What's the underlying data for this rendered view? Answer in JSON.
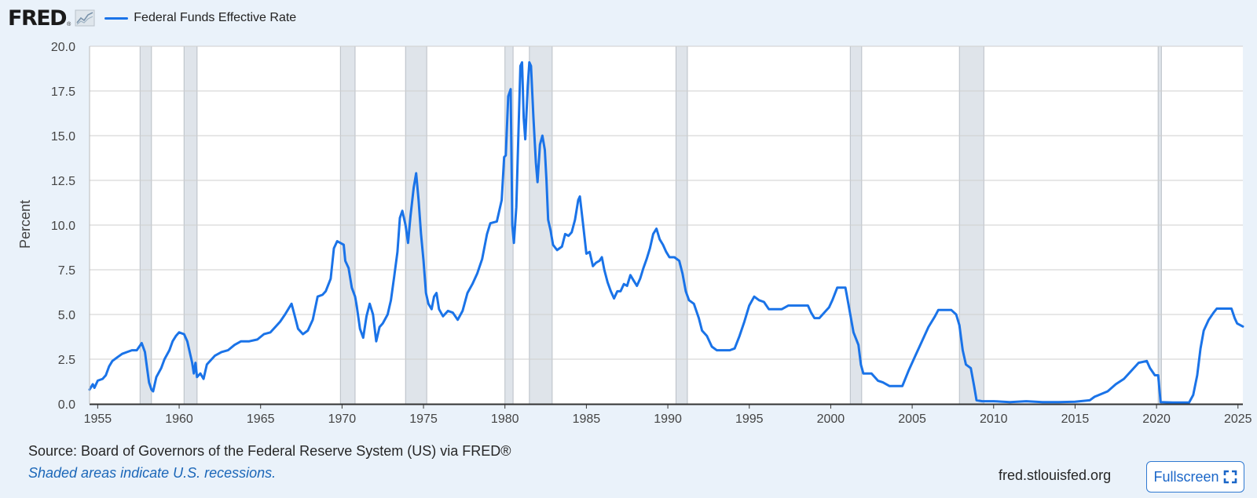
{
  "header": {
    "logo_text": "FRED",
    "logo_mark": "®",
    "logo_icon": "line-chart-icon",
    "legend_label": "Federal Funds Effective Rate"
  },
  "footer": {
    "source": "Source: Board of Governors of the Federal Reserve System (US) via FRED®",
    "note": "Shaded areas indicate U.S. recessions.",
    "url": "fred.stlouisfed.org",
    "fullscreen_label": "Fullscreen",
    "fullscreen_icon": "expand-icon"
  },
  "colors": {
    "series": "#1a73e8",
    "recession_band": "#dfe4ea",
    "recession_border": "#b9bfc6",
    "grid": "#cfcfcf",
    "plot_background": "#ffffff",
    "page_background": "#eaf2fa"
  },
  "chart_data": {
    "type": "line",
    "title": "",
    "xlabel": "",
    "ylabel": "Percent",
    "xlim": [
      1954.5,
      2025.3
    ],
    "ylim": [
      0,
      20
    ],
    "yticks": [
      0,
      2.5,
      5,
      7.5,
      10,
      12.5,
      15,
      17.5,
      20
    ],
    "ytick_labels": [
      "0.0",
      "2.5",
      "5.0",
      "7.5",
      "10.0",
      "12.5",
      "15.0",
      "17.5",
      "20.0"
    ],
    "xticks": [
      1955,
      1960,
      1965,
      1970,
      1975,
      1980,
      1985,
      1990,
      1995,
      2000,
      2005,
      2010,
      2015,
      2020,
      2025
    ],
    "xtick_labels": [
      "1955",
      "1960",
      "1965",
      "1970",
      "1975",
      "1980",
      "1985",
      "1990",
      "1995",
      "2000",
      "2005",
      "2010",
      "2015",
      "2020",
      "2025"
    ],
    "grid": true,
    "legend_position": "top-left",
    "recessions": [
      [
        1957.6,
        1958.3
      ],
      [
        1960.3,
        1961.1
      ],
      [
        1969.9,
        1970.8
      ],
      [
        1973.9,
        1975.2
      ],
      [
        1980.0,
        1980.5
      ],
      [
        1981.5,
        1982.9
      ],
      [
        1990.5,
        1991.2
      ],
      [
        2001.2,
        2001.9
      ],
      [
        2007.9,
        2009.4
      ],
      [
        2020.1,
        2020.3
      ]
    ],
    "series": [
      {
        "name": "Federal Funds Effective Rate",
        "points": [
          [
            1954.5,
            0.8
          ],
          [
            1954.7,
            1.1
          ],
          [
            1954.8,
            0.9
          ],
          [
            1955.0,
            1.3
          ],
          [
            1955.3,
            1.4
          ],
          [
            1955.5,
            1.6
          ],
          [
            1955.7,
            2.1
          ],
          [
            1955.9,
            2.4
          ],
          [
            1956.2,
            2.6
          ],
          [
            1956.5,
            2.8
          ],
          [
            1956.8,
            2.9
          ],
          [
            1957.1,
            3.0
          ],
          [
            1957.4,
            3.0
          ],
          [
            1957.7,
            3.4
          ],
          [
            1957.9,
            2.9
          ],
          [
            1958.0,
            2.2
          ],
          [
            1958.15,
            1.2
          ],
          [
            1958.3,
            0.8
          ],
          [
            1958.4,
            0.7
          ],
          [
            1958.6,
            1.5
          ],
          [
            1958.9,
            2.0
          ],
          [
            1959.1,
            2.5
          ],
          [
            1959.4,
            3.0
          ],
          [
            1959.6,
            3.5
          ],
          [
            1959.8,
            3.8
          ],
          [
            1960.0,
            4.0
          ],
          [
            1960.3,
            3.9
          ],
          [
            1960.5,
            3.5
          ],
          [
            1960.65,
            2.9
          ],
          [
            1960.8,
            2.3
          ],
          [
            1960.9,
            1.7
          ],
          [
            1961.0,
            2.3
          ],
          [
            1961.1,
            1.5
          ],
          [
            1961.3,
            1.7
          ],
          [
            1961.5,
            1.4
          ],
          [
            1961.7,
            2.2
          ],
          [
            1961.9,
            2.4
          ],
          [
            1962.2,
            2.7
          ],
          [
            1962.6,
            2.9
          ],
          [
            1963.0,
            3.0
          ],
          [
            1963.4,
            3.3
          ],
          [
            1963.8,
            3.5
          ],
          [
            1964.3,
            3.5
          ],
          [
            1964.8,
            3.6
          ],
          [
            1965.2,
            3.9
          ],
          [
            1965.6,
            4.0
          ],
          [
            1965.9,
            4.3
          ],
          [
            1966.2,
            4.6
          ],
          [
            1966.5,
            5.0
          ],
          [
            1966.9,
            5.6
          ],
          [
            1967.1,
            4.9
          ],
          [
            1967.3,
            4.2
          ],
          [
            1967.6,
            3.9
          ],
          [
            1967.9,
            4.1
          ],
          [
            1968.2,
            4.7
          ],
          [
            1968.5,
            6.0
          ],
          [
            1968.8,
            6.1
          ],
          [
            1969.0,
            6.3
          ],
          [
            1969.3,
            7.0
          ],
          [
            1969.5,
            8.7
          ],
          [
            1969.7,
            9.1
          ],
          [
            1969.9,
            9.0
          ],
          [
            1970.1,
            8.9
          ],
          [
            1970.2,
            8.0
          ],
          [
            1970.4,
            7.6
          ],
          [
            1970.6,
            6.5
          ],
          [
            1970.8,
            6.0
          ],
          [
            1970.9,
            5.5
          ],
          [
            1971.1,
            4.2
          ],
          [
            1971.3,
            3.7
          ],
          [
            1971.5,
            4.9
          ],
          [
            1971.7,
            5.6
          ],
          [
            1971.9,
            5.0
          ],
          [
            1972.1,
            3.5
          ],
          [
            1972.3,
            4.3
          ],
          [
            1972.5,
            4.5
          ],
          [
            1972.8,
            5.0
          ],
          [
            1973.0,
            5.8
          ],
          [
            1973.2,
            7.1
          ],
          [
            1973.4,
            8.5
          ],
          [
            1973.55,
            10.4
          ],
          [
            1973.7,
            10.8
          ],
          [
            1973.9,
            10.0
          ],
          [
            1974.05,
            9.0
          ],
          [
            1974.2,
            10.5
          ],
          [
            1974.4,
            12.1
          ],
          [
            1974.55,
            12.9
          ],
          [
            1974.7,
            11.4
          ],
          [
            1974.85,
            9.5
          ],
          [
            1975.0,
            8.0
          ],
          [
            1975.15,
            6.2
          ],
          [
            1975.3,
            5.6
          ],
          [
            1975.5,
            5.3
          ],
          [
            1975.65,
            6.0
          ],
          [
            1975.8,
            6.2
          ],
          [
            1975.95,
            5.3
          ],
          [
            1976.2,
            4.9
          ],
          [
            1976.5,
            5.2
          ],
          [
            1976.8,
            5.1
          ],
          [
            1977.1,
            4.7
          ],
          [
            1977.4,
            5.2
          ],
          [
            1977.7,
            6.2
          ],
          [
            1978.0,
            6.7
          ],
          [
            1978.3,
            7.3
          ],
          [
            1978.6,
            8.1
          ],
          [
            1978.9,
            9.5
          ],
          [
            1979.1,
            10.1
          ],
          [
            1979.5,
            10.2
          ],
          [
            1979.8,
            11.4
          ],
          [
            1979.95,
            13.8
          ],
          [
            1980.05,
            13.9
          ],
          [
            1980.2,
            17.2
          ],
          [
            1980.35,
            17.6
          ],
          [
            1980.45,
            10.0
          ],
          [
            1980.55,
            9.0
          ],
          [
            1980.7,
            11.0
          ],
          [
            1980.85,
            15.9
          ],
          [
            1980.95,
            18.9
          ],
          [
            1981.05,
            19.1
          ],
          [
            1981.15,
            16.0
          ],
          [
            1981.25,
            14.8
          ],
          [
            1981.4,
            17.8
          ],
          [
            1981.5,
            19.1
          ],
          [
            1981.6,
            18.9
          ],
          [
            1981.75,
            16.0
          ],
          [
            1981.9,
            13.5
          ],
          [
            1982.0,
            12.4
          ],
          [
            1982.15,
            14.5
          ],
          [
            1982.3,
            15.0
          ],
          [
            1982.45,
            14.2
          ],
          [
            1982.55,
            12.5
          ],
          [
            1982.65,
            10.3
          ],
          [
            1982.8,
            9.7
          ],
          [
            1982.95,
            8.9
          ],
          [
            1983.2,
            8.6
          ],
          [
            1983.5,
            8.8
          ],
          [
            1983.7,
            9.5
          ],
          [
            1983.9,
            9.4
          ],
          [
            1984.1,
            9.6
          ],
          [
            1984.3,
            10.3
          ],
          [
            1984.5,
            11.4
          ],
          [
            1984.6,
            11.6
          ],
          [
            1984.8,
            10.0
          ],
          [
            1985.0,
            8.4
          ],
          [
            1985.2,
            8.5
          ],
          [
            1985.4,
            7.7
          ],
          [
            1985.6,
            7.9
          ],
          [
            1985.8,
            8.0
          ],
          [
            1985.95,
            8.2
          ],
          [
            1986.1,
            7.5
          ],
          [
            1986.3,
            6.8
          ],
          [
            1986.5,
            6.3
          ],
          [
            1986.7,
            5.9
          ],
          [
            1986.9,
            6.3
          ],
          [
            1987.1,
            6.3
          ],
          [
            1987.3,
            6.7
          ],
          [
            1987.5,
            6.6
          ],
          [
            1987.7,
            7.2
          ],
          [
            1987.9,
            6.9
          ],
          [
            1988.1,
            6.6
          ],
          [
            1988.3,
            7.0
          ],
          [
            1988.5,
            7.6
          ],
          [
            1988.7,
            8.1
          ],
          [
            1988.9,
            8.7
          ],
          [
            1989.1,
            9.5
          ],
          [
            1989.3,
            9.8
          ],
          [
            1989.5,
            9.2
          ],
          [
            1989.7,
            8.9
          ],
          [
            1989.9,
            8.5
          ],
          [
            1990.1,
            8.2
          ],
          [
            1990.4,
            8.2
          ],
          [
            1990.7,
            8.0
          ],
          [
            1990.9,
            7.3
          ],
          [
            1991.1,
            6.3
          ],
          [
            1991.3,
            5.8
          ],
          [
            1991.6,
            5.6
          ],
          [
            1991.9,
            4.8
          ],
          [
            1992.1,
            4.1
          ],
          [
            1992.4,
            3.8
          ],
          [
            1992.7,
            3.2
          ],
          [
            1993.0,
            3.0
          ],
          [
            1993.4,
            3.0
          ],
          [
            1993.8,
            3.0
          ],
          [
            1994.1,
            3.1
          ],
          [
            1994.4,
            3.8
          ],
          [
            1994.7,
            4.6
          ],
          [
            1995.0,
            5.5
          ],
          [
            1995.3,
            6.0
          ],
          [
            1995.6,
            5.8
          ],
          [
            1995.9,
            5.7
          ],
          [
            1996.2,
            5.3
          ],
          [
            1996.6,
            5.3
          ],
          [
            1997.0,
            5.3
          ],
          [
            1997.4,
            5.5
          ],
          [
            1997.8,
            5.5
          ],
          [
            1998.2,
            5.5
          ],
          [
            1998.6,
            5.5
          ],
          [
            1998.8,
            5.1
          ],
          [
            1999.0,
            4.8
          ],
          [
            1999.3,
            4.8
          ],
          [
            1999.7,
            5.2
          ],
          [
            1999.9,
            5.4
          ],
          [
            2000.1,
            5.8
          ],
          [
            2000.4,
            6.5
          ],
          [
            2000.9,
            6.5
          ],
          [
            2001.0,
            6.0
          ],
          [
            2001.2,
            5.0
          ],
          [
            2001.4,
            4.0
          ],
          [
            2001.7,
            3.3
          ],
          [
            2001.85,
            2.2
          ],
          [
            2002.0,
            1.7
          ],
          [
            2002.5,
            1.7
          ],
          [
            2002.9,
            1.3
          ],
          [
            2003.2,
            1.2
          ],
          [
            2003.6,
            1.0
          ],
          [
            2004.0,
            1.0
          ],
          [
            2004.4,
            1.0
          ],
          [
            2004.8,
            1.9
          ],
          [
            2005.2,
            2.7
          ],
          [
            2005.6,
            3.5
          ],
          [
            2006.0,
            4.3
          ],
          [
            2006.4,
            4.9
          ],
          [
            2006.6,
            5.25
          ],
          [
            2007.4,
            5.25
          ],
          [
            2007.7,
            5.0
          ],
          [
            2007.9,
            4.4
          ],
          [
            2008.1,
            3.0
          ],
          [
            2008.3,
            2.2
          ],
          [
            2008.6,
            2.0
          ],
          [
            2008.8,
            1.0
          ],
          [
            2008.95,
            0.2
          ],
          [
            2009.3,
            0.15
          ],
          [
            2010.0,
            0.15
          ],
          [
            2011.0,
            0.1
          ],
          [
            2012.0,
            0.15
          ],
          [
            2013.0,
            0.1
          ],
          [
            2014.0,
            0.1
          ],
          [
            2015.0,
            0.12
          ],
          [
            2015.9,
            0.2
          ],
          [
            2016.2,
            0.4
          ],
          [
            2017.0,
            0.7
          ],
          [
            2017.5,
            1.1
          ],
          [
            2018.0,
            1.4
          ],
          [
            2018.5,
            1.9
          ],
          [
            2018.9,
            2.3
          ],
          [
            2019.4,
            2.4
          ],
          [
            2019.6,
            2.0
          ],
          [
            2019.9,
            1.6
          ],
          [
            2020.1,
            1.6
          ],
          [
            2020.25,
            0.1
          ],
          [
            2021.0,
            0.08
          ],
          [
            2022.0,
            0.08
          ],
          [
            2022.25,
            0.5
          ],
          [
            2022.5,
            1.6
          ],
          [
            2022.7,
            3.1
          ],
          [
            2022.9,
            4.1
          ],
          [
            2023.2,
            4.7
          ],
          [
            2023.5,
            5.1
          ],
          [
            2023.7,
            5.33
          ],
          [
            2024.6,
            5.33
          ],
          [
            2024.8,
            4.8
          ],
          [
            2024.95,
            4.5
          ],
          [
            2025.3,
            4.33
          ]
        ]
      }
    ]
  }
}
